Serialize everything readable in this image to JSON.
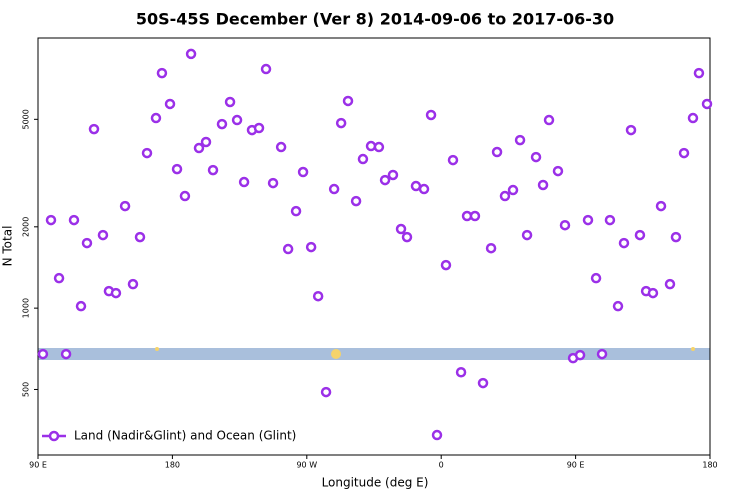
{
  "chart_data": {
    "type": "scatter",
    "title": "50S-45S December (Ver 8)   2014-09-06 to 2017-06-30",
    "xlabel": "Longitude (deg E)",
    "ylabel": "N Total",
    "yscale": "log",
    "xlim": [
      90,
      540
    ],
    "ylim": [
      286,
      10000
    ],
    "xticks": [
      {
        "value": 90,
        "label": "90 E"
      },
      180,
      {
        "value": 270,
        "label": "90 W"
      },
      {
        "value": 360,
        "label": "0"
      },
      {
        "value": 450,
        "label": "90 E"
      },
      {
        "value": 540,
        "label": "180"
      }
    ],
    "yticks": [
      500,
      1000,
      2000,
      5000
    ],
    "legend": "lower left",
    "series": [
      {
        "name": "Land (Nadir&Glint) and Ocean (Glint)",
        "color": "#9b30e8",
        "x": [
          93.3,
          98.7,
          104.1,
          108.8,
          114.1,
          118.8,
          122.8,
          127.5,
          133.5,
          137.5,
          142.2,
          148.3,
          153.6,
          158.3,
          163.0,
          169.0,
          173.0,
          178.4,
          183.1,
          188.4,
          192.5,
          197.8,
          202.5,
          207.2,
          213.2,
          218.6,
          223.3,
          228.0,
          233.3,
          238.0,
          242.7,
          247.4,
          252.8,
          257.5,
          262.8,
          267.5,
          272.9,
          277.6,
          282.9,
          288.3,
          293.0,
          297.6,
          303.0,
          307.6,
          313.0,
          318.3,
          322.4,
          327.7,
          333.1,
          337.1,
          343.1,
          348.5,
          353.2,
          357.2,
          363.2,
          367.9,
          373.3,
          377.3,
          382.6,
          388.0,
          393.4,
          397.4,
          402.7,
          408.1,
          412.8,
          417.5,
          423.5,
          428.2,
          432.2,
          438.2,
          442.9,
          448.3,
          453.0,
          458.3,
          463.7,
          467.7,
          473.0,
          478.4,
          482.4,
          487.1,
          493.1,
          497.2,
          501.8,
          507.2,
          513.2,
          517.2,
          522.6,
          528.6,
          532.6,
          538.0
        ],
        "values": [
          676,
          2118,
          1291,
          676,
          2118,
          1017,
          1741,
          4600,
          1864,
          1156,
          1137,
          2387,
          1227,
          1832,
          3750,
          5055,
          7413,
          5700,
          3271,
          2600,
          8730,
          3914,
          4121,
          3243,
          4800,
          5796,
          4970,
          2929,
          4562,
          4643,
          7674,
          2904,
          3948,
          1655,
          2286,
          3191,
          1683,
          1107,
          489,
          2760,
          4842,
          5848,
          2490,
          3564,
          3981,
          3948,
          2979,
          3111,
          1963,
          1832,
          2831,
          2760,
          5188,
          339,
          1443,
          3532,
          579,
          2193,
          2193,
          528,
          1667,
          3784,
          2600,
          2736,
          4188,
          1864,
          3624,
          2857,
          4970,
          3216,
          2028,
          653,
          670,
          2118,
          1291,
          676,
          2118,
          1017,
          1741,
          4562,
          1864,
          1156,
          1137,
          2387,
          1227,
          1832,
          3750,
          5055,
          7413,
          5700
        ]
      }
    ]
  }
}
